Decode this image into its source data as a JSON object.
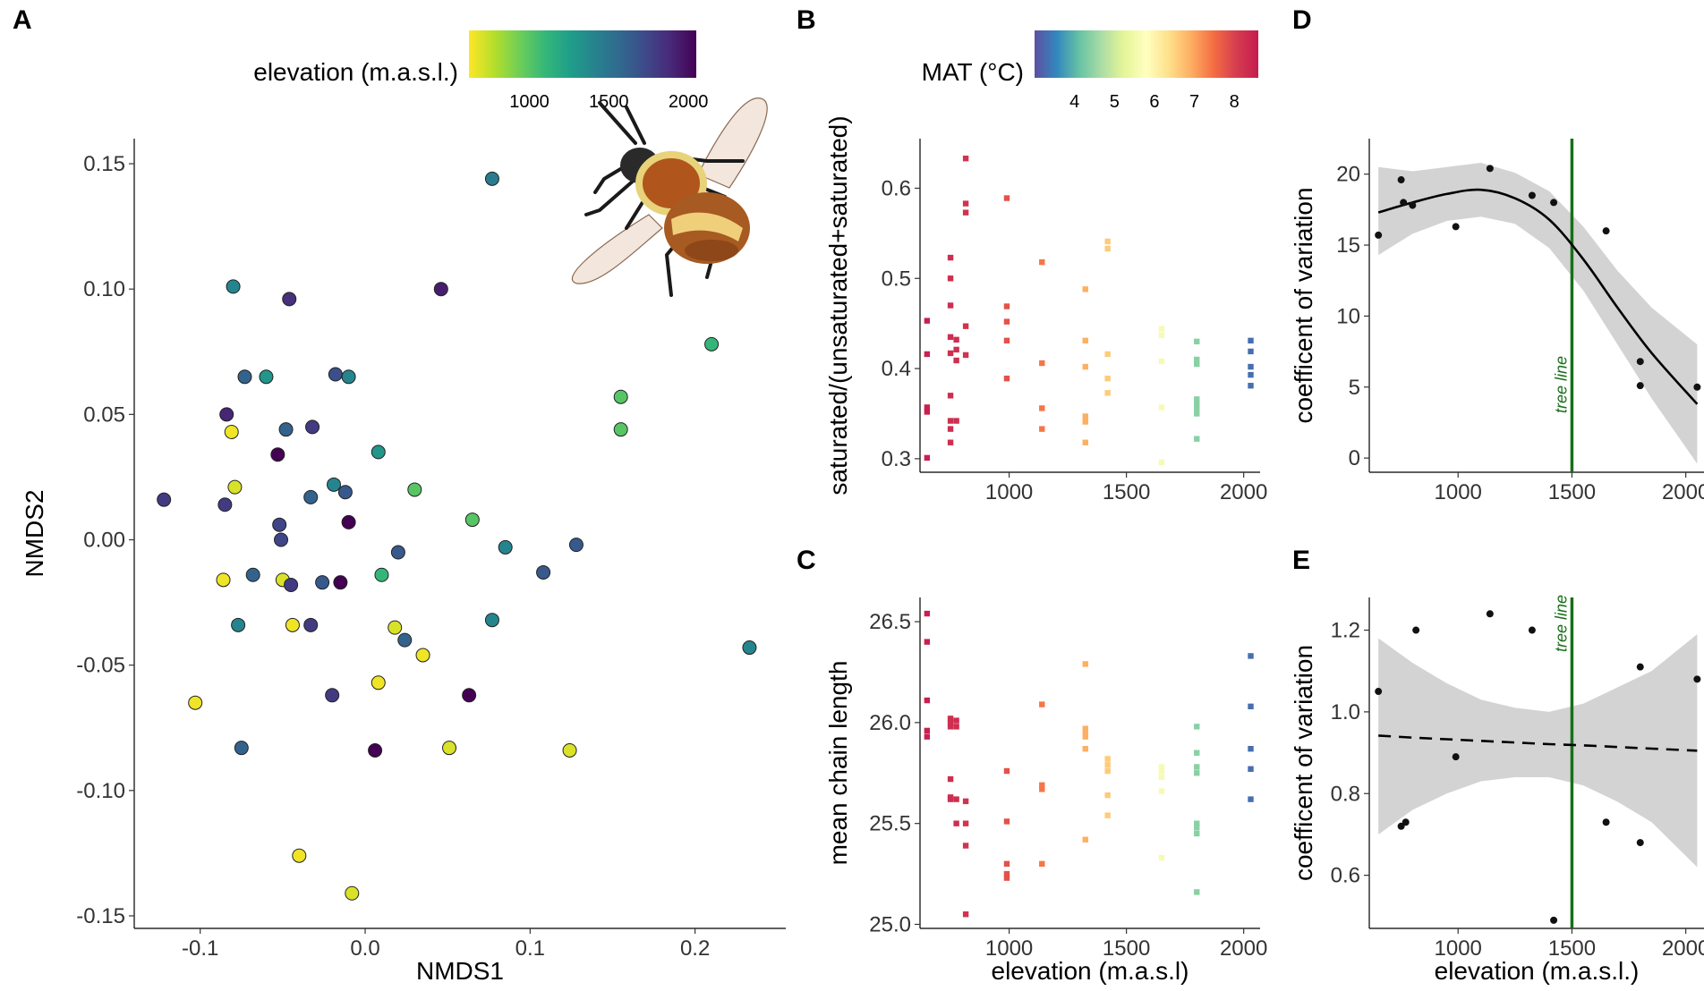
{
  "colors": {
    "viridis": [
      "#fde725",
      "#b5de2b",
      "#6ece58",
      "#35b779",
      "#1f9e89",
      "#26828e",
      "#31688e",
      "#3e4989",
      "#482878",
      "#440154"
    ],
    "spectral": [
      "#5e4fa2",
      "#3288bd",
      "#66c2a5",
      "#abdda4",
      "#e6f598",
      "#ffffbf",
      "#fee08b",
      "#fdae61",
      "#f46d43",
      "#d53e4f",
      "#c51b4f"
    ],
    "tree_line": "#1a6e1a",
    "ci_band": "#d3d3d3"
  },
  "illustration": {
    "name": "bumblebee"
  },
  "chart_data": [
    {
      "id": "A",
      "panel_label": "A",
      "type": "scatter",
      "xlabel": "NMDS1",
      "ylabel": "NMDS2",
      "xlim": [
        -0.14,
        0.255
      ],
      "ylim": [
        -0.155,
        0.16
      ],
      "xticks": [
        -0.1,
        0.0,
        0.1,
        0.2
      ],
      "xtick_labels": [
        "-0.1",
        "0.0",
        "0.1",
        "0.2"
      ],
      "yticks": [
        -0.15,
        -0.1,
        -0.05,
        0.0,
        0.05,
        0.1,
        0.15
      ],
      "ytick_labels": [
        "-0.15",
        "-0.10",
        "-0.05",
        "0.00",
        "0.05",
        "0.10",
        "0.15"
      ],
      "color_legend": {
        "title": "elevation (m.a.s.l.)",
        "range": [
          620,
          2050
        ],
        "ticks": [
          1000,
          1500,
          2000
        ],
        "tick_labels": [
          "1000",
          "1500",
          "2000"
        ]
      },
      "points": [
        {
          "x": 0.077,
          "y": 0.144,
          "elev": 1450
        },
        {
          "x": -0.08,
          "y": 0.101,
          "elev": 1400
        },
        {
          "x": -0.046,
          "y": 0.096,
          "elev": 1850
        },
        {
          "x": 0.046,
          "y": 0.1,
          "elev": 1930
        },
        {
          "x": 0.21,
          "y": 0.078,
          "elev": 1100
        },
        {
          "x": -0.073,
          "y": 0.065,
          "elev": 1600
        },
        {
          "x": -0.06,
          "y": 0.065,
          "elev": 1300
        },
        {
          "x": -0.018,
          "y": 0.066,
          "elev": 1700
        },
        {
          "x": -0.01,
          "y": 0.065,
          "elev": 1400
        },
        {
          "x": 0.155,
          "y": 0.057,
          "elev": 1000
        },
        {
          "x": -0.084,
          "y": 0.05,
          "elev": 1900
        },
        {
          "x": -0.081,
          "y": 0.043,
          "elev": 650
        },
        {
          "x": -0.048,
          "y": 0.044,
          "elev": 1600
        },
        {
          "x": -0.032,
          "y": 0.045,
          "elev": 1800
        },
        {
          "x": 0.155,
          "y": 0.044,
          "elev": 1000
        },
        {
          "x": -0.053,
          "y": 0.034,
          "elev": 2050
        },
        {
          "x": 0.008,
          "y": 0.035,
          "elev": 1300
        },
        {
          "x": -0.122,
          "y": 0.016,
          "elev": 1800
        },
        {
          "x": -0.079,
          "y": 0.021,
          "elev": 700
        },
        {
          "x": -0.085,
          "y": 0.014,
          "elev": 1800
        },
        {
          "x": -0.033,
          "y": 0.017,
          "elev": 1600
        },
        {
          "x": -0.019,
          "y": 0.022,
          "elev": 1400
        },
        {
          "x": -0.012,
          "y": 0.019,
          "elev": 1650
        },
        {
          "x": 0.03,
          "y": 0.02,
          "elev": 1000
        },
        {
          "x": -0.052,
          "y": 0.006,
          "elev": 1750
        },
        {
          "x": -0.01,
          "y": 0.007,
          "elev": 2050
        },
        {
          "x": 0.065,
          "y": 0.008,
          "elev": 1000
        },
        {
          "x": -0.051,
          "y": 0.0,
          "elev": 1750
        },
        {
          "x": 0.02,
          "y": -0.005,
          "elev": 1650
        },
        {
          "x": 0.085,
          "y": -0.003,
          "elev": 1400
        },
        {
          "x": 0.128,
          "y": -0.002,
          "elev": 1650
        },
        {
          "x": -0.086,
          "y": -0.016,
          "elev": 650
        },
        {
          "x": -0.068,
          "y": -0.014,
          "elev": 1600
        },
        {
          "x": -0.05,
          "y": -0.016,
          "elev": 700
        },
        {
          "x": -0.045,
          "y": -0.018,
          "elev": 1800
        },
        {
          "x": -0.026,
          "y": -0.017,
          "elev": 1650
        },
        {
          "x": -0.015,
          "y": -0.017,
          "elev": 2050
        },
        {
          "x": 0.01,
          "y": -0.014,
          "elev": 1100
        },
        {
          "x": 0.108,
          "y": -0.013,
          "elev": 1650
        },
        {
          "x": -0.077,
          "y": -0.034,
          "elev": 1400
        },
        {
          "x": -0.044,
          "y": -0.034,
          "elev": 650
        },
        {
          "x": -0.033,
          "y": -0.034,
          "elev": 1800
        },
        {
          "x": 0.018,
          "y": -0.035,
          "elev": 700
        },
        {
          "x": 0.024,
          "y": -0.04,
          "elev": 1600
        },
        {
          "x": 0.035,
          "y": -0.046,
          "elev": 650
        },
        {
          "x": 0.077,
          "y": -0.032,
          "elev": 1400
        },
        {
          "x": 0.233,
          "y": -0.043,
          "elev": 1400
        },
        {
          "x": -0.103,
          "y": -0.065,
          "elev": 650
        },
        {
          "x": -0.02,
          "y": -0.062,
          "elev": 1800
        },
        {
          "x": 0.008,
          "y": -0.057,
          "elev": 650
        },
        {
          "x": 0.063,
          "y": -0.062,
          "elev": 2050
        },
        {
          "x": -0.075,
          "y": -0.083,
          "elev": 1600
        },
        {
          "x": 0.006,
          "y": -0.084,
          "elev": 2050
        },
        {
          "x": 0.051,
          "y": -0.083,
          "elev": 700
        },
        {
          "x": 0.124,
          "y": -0.084,
          "elev": 700
        },
        {
          "x": -0.04,
          "y": -0.126,
          "elev": 650
        },
        {
          "x": -0.008,
          "y": -0.141,
          "elev": 700
        }
      ]
    },
    {
      "id": "B",
      "panel_label": "B",
      "type": "scatter",
      "xlabel": "",
      "ylabel": "saturated/(unsaturated+saturated)",
      "xlim": [
        620,
        2070
      ],
      "ylim": [
        0.285,
        0.655
      ],
      "xticks": [
        1000,
        1500,
        2000
      ],
      "xtick_labels": [
        "1000",
        "1500",
        "2000"
      ],
      "yticks": [
        0.3,
        0.4,
        0.5,
        0.6
      ],
      "ytick_labels": [
        "0.3",
        "0.4",
        "0.5",
        "0.6"
      ],
      "color_legend": {
        "title": "MAT (°C)",
        "range": [
          3.0,
          8.6
        ],
        "ticks": [
          4,
          5,
          6,
          7,
          8
        ],
        "tick_labels": [
          "4",
          "5",
          "6",
          "7",
          "8"
        ]
      },
      "groups": [
        {
          "x": 650,
          "mat": 8.5,
          "values": [
            0.453,
            0.416,
            0.357,
            0.352,
            0.301
          ]
        },
        {
          "x": 750,
          "mat": 8.3,
          "values": [
            0.523,
            0.5,
            0.47,
            0.435,
            0.417,
            0.37,
            0.342,
            0.333,
            0.318
          ]
        },
        {
          "x": 775,
          "mat": 8.3,
          "values": [
            0.432,
            0.421,
            0.409,
            0.342
          ]
        },
        {
          "x": 815,
          "mat": 8.2,
          "values": [
            0.633,
            0.583,
            0.573,
            0.447,
            0.415
          ]
        },
        {
          "x": 990,
          "mat": 7.8,
          "values": [
            0.589,
            0.469,
            0.452,
            0.431,
            0.389
          ]
        },
        {
          "x": 1140,
          "mat": 7.4,
          "values": [
            0.518,
            0.406,
            0.356,
            0.333
          ]
        },
        {
          "x": 1325,
          "mat": 6.9,
          "values": [
            0.488,
            0.431,
            0.402,
            0.347,
            0.341,
            0.318
          ]
        },
        {
          "x": 1420,
          "mat": 6.6,
          "values": [
            0.541,
            0.533,
            0.416,
            0.389,
            0.373
          ]
        },
        {
          "x": 1650,
          "mat": 5.6,
          "values": [
            0.444,
            0.437,
            0.408,
            0.357,
            0.296
          ]
        },
        {
          "x": 1800,
          "mat": 4.4,
          "values": [
            0.43,
            0.41,
            0.405,
            0.366,
            0.361,
            0.355,
            0.35,
            0.322
          ]
        },
        {
          "x": 2030,
          "mat": 3.3,
          "values": [
            0.431,
            0.419,
            0.402,
            0.393,
            0.381
          ]
        }
      ]
    },
    {
      "id": "C",
      "panel_label": "C",
      "type": "scatter",
      "xlabel": "elevation (m.a.s.l)",
      "ylabel": "mean chain length",
      "xlim": [
        620,
        2070
      ],
      "ylim": [
        24.98,
        26.62
      ],
      "xticks": [
        1000,
        1500,
        2000
      ],
      "xtick_labels": [
        "1000",
        "1500",
        "2000"
      ],
      "yticks": [
        25.0,
        25.5,
        26.0,
        26.5
      ],
      "ytick_labels": [
        "25.0",
        "25.5",
        "26.0",
        "26.5"
      ],
      "groups": [
        {
          "x": 650,
          "mat": 8.5,
          "values": [
            26.54,
            26.4,
            26.11,
            25.96,
            25.93
          ]
        },
        {
          "x": 750,
          "mat": 8.3,
          "values": [
            26.02,
            26.0,
            25.98,
            25.72,
            25.63,
            25.62
          ]
        },
        {
          "x": 775,
          "mat": 8.3,
          "values": [
            26.01,
            25.98,
            25.62,
            25.5
          ]
        },
        {
          "x": 815,
          "mat": 8.2,
          "values": [
            25.61,
            25.5,
            25.39,
            25.05
          ]
        },
        {
          "x": 990,
          "mat": 7.8,
          "values": [
            25.76,
            25.51,
            25.3,
            25.25,
            25.23
          ]
        },
        {
          "x": 1140,
          "mat": 7.4,
          "values": [
            26.09,
            25.69,
            25.67,
            25.3
          ]
        },
        {
          "x": 1325,
          "mat": 6.9,
          "values": [
            26.29,
            25.97,
            25.95,
            25.93,
            25.87,
            25.42
          ]
        },
        {
          "x": 1420,
          "mat": 6.6,
          "values": [
            25.82,
            25.79,
            25.76,
            25.64,
            25.54
          ]
        },
        {
          "x": 1650,
          "mat": 5.6,
          "values": [
            25.78,
            25.76,
            25.73,
            25.66,
            25.33
          ]
        },
        {
          "x": 1800,
          "mat": 4.4,
          "values": [
            25.98,
            25.85,
            25.78,
            25.75,
            25.5,
            25.48,
            25.45,
            25.16
          ]
        },
        {
          "x": 2030,
          "mat": 3.3,
          "values": [
            26.33,
            26.08,
            25.87,
            25.77,
            25.62
          ]
        }
      ]
    },
    {
      "id": "D",
      "panel_label": "D",
      "type": "scatter",
      "xlabel": "",
      "ylabel": "coefficent of variation",
      "xlim": [
        610,
        2080
      ],
      "ylim": [
        -1.0,
        22.5
      ],
      "xticks": [
        1000,
        1500,
        2000
      ],
      "xtick_labels": [
        "1000",
        "1500",
        "2000"
      ],
      "yticks": [
        0,
        5,
        10,
        15,
        20
      ],
      "ytick_labels": [
        "0",
        "5",
        "10",
        "15",
        "20"
      ],
      "tree_line": {
        "x": 1500,
        "label": "tree line"
      },
      "points": [
        {
          "x": 650,
          "y": 15.7
        },
        {
          "x": 750,
          "y": 19.6
        },
        {
          "x": 760,
          "y": 18.0
        },
        {
          "x": 800,
          "y": 17.8
        },
        {
          "x": 990,
          "y": 16.3
        },
        {
          "x": 1140,
          "y": 20.4
        },
        {
          "x": 1325,
          "y": 18.5
        },
        {
          "x": 1420,
          "y": 18.0
        },
        {
          "x": 1650,
          "y": 16.0
        },
        {
          "x": 1800,
          "y": 6.8
        },
        {
          "x": 1800,
          "y": 5.1
        },
        {
          "x": 2050,
          "y": 5.0
        }
      ],
      "fit": {
        "style": "solid",
        "x": [
          650,
          800,
          950,
          1100,
          1250,
          1400,
          1550,
          1700,
          1850,
          2050
        ],
        "y": [
          17.3,
          18.0,
          18.6,
          18.9,
          18.3,
          16.8,
          14.0,
          10.6,
          7.4,
          3.8
        ],
        "lower": [
          14.3,
          15.8,
          16.7,
          17.0,
          16.5,
          14.8,
          11.8,
          8.0,
          4.2,
          -0.4
        ],
        "upper": [
          20.5,
          20.2,
          20.5,
          20.8,
          20.1,
          18.8,
          16.3,
          13.2,
          10.6,
          8.0
        ]
      }
    },
    {
      "id": "E",
      "panel_label": "E",
      "type": "scatter",
      "xlabel": "elevation (m.a.s.l.)",
      "ylabel": "coefficent of variation",
      "xlim": [
        610,
        2080
      ],
      "ylim": [
        0.47,
        1.28
      ],
      "xticks": [
        1000,
        1500,
        2000
      ],
      "xtick_labels": [
        "1000",
        "1500",
        "2000"
      ],
      "yticks": [
        0.6,
        0.8,
        1.0,
        1.2
      ],
      "ytick_labels": [
        "0.6",
        "0.8",
        "1.0",
        "1.2"
      ],
      "tree_line": {
        "x": 1500,
        "label": "tree line"
      },
      "points": [
        {
          "x": 650,
          "y": 1.05
        },
        {
          "x": 750,
          "y": 0.72
        },
        {
          "x": 770,
          "y": 0.73
        },
        {
          "x": 815,
          "y": 1.2
        },
        {
          "x": 990,
          "y": 0.89
        },
        {
          "x": 1140,
          "y": 1.24
        },
        {
          "x": 1325,
          "y": 1.2
        },
        {
          "x": 1420,
          "y": 0.49
        },
        {
          "x": 1650,
          "y": 0.73
        },
        {
          "x": 1800,
          "y": 1.11
        },
        {
          "x": 1800,
          "y": 0.68
        },
        {
          "x": 2050,
          "y": 1.08
        }
      ],
      "fit": {
        "style": "dashed",
        "x": [
          650,
          800,
          950,
          1100,
          1250,
          1400,
          1550,
          1700,
          1850,
          2050
        ],
        "y": [
          0.942,
          0.937,
          0.933,
          0.929,
          0.925,
          0.921,
          0.918,
          0.914,
          0.91,
          0.905
        ],
        "lower": [
          0.7,
          0.76,
          0.8,
          0.83,
          0.84,
          0.84,
          0.82,
          0.78,
          0.73,
          0.62
        ],
        "upper": [
          1.18,
          1.12,
          1.07,
          1.03,
          1.01,
          1.0,
          1.02,
          1.06,
          1.1,
          1.19
        ]
      }
    }
  ]
}
